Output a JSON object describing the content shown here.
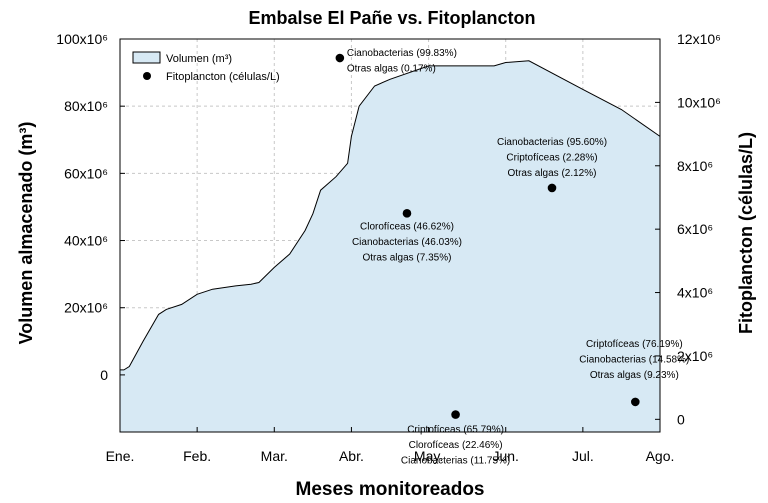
{
  "chart_data": {
    "type": "area",
    "title": "Embalse El Pañe vs. Fitoplancton",
    "xlabel": "Meses monitoreados",
    "ylabel_left": "Volumen almacenado (m³)",
    "ylabel_right": "Fitoplancton (células/L)",
    "months": [
      "Ene.",
      "Feb.",
      "Mar.",
      "Abr.",
      "May.",
      "Jun.",
      "Jul.",
      "Ago."
    ],
    "ylim_left": [
      -17,
      100
    ],
    "ylim_right": [
      -0.4,
      12
    ],
    "left_ticks": [
      {
        "v": 100,
        "label": "100x10⁶"
      },
      {
        "v": 80,
        "label": "80x10⁶"
      },
      {
        "v": 60,
        "label": "60x10⁶"
      },
      {
        "v": 40,
        "label": "40x10⁶"
      },
      {
        "v": 20,
        "label": "20x10⁶"
      },
      {
        "v": 0,
        "label": "0"
      }
    ],
    "right_ticks": [
      {
        "v": 12,
        "label": "12x10⁶"
      },
      {
        "v": 10,
        "label": "10x10⁶"
      },
      {
        "v": 8,
        "label": "8x10⁶"
      },
      {
        "v": 6,
        "label": "6x10⁶"
      },
      {
        "v": 4,
        "label": "4x10⁶"
      },
      {
        "v": 2,
        "label": "2x10⁶"
      },
      {
        "v": 0,
        "label": "0"
      }
    ],
    "grid": true,
    "legend_position": "top-left",
    "series": [
      {
        "name": "Volumen (m³)",
        "unit_scale": "x10⁶ m³",
        "x": [
          0,
          0.05,
          0.12,
          0.3,
          0.5,
          0.6,
          0.8,
          1.0,
          1.2,
          1.5,
          1.7,
          1.8,
          2.0,
          2.2,
          2.4,
          2.5,
          2.6,
          2.8,
          2.95,
          3.0,
          3.1,
          3.3,
          3.5,
          4.0,
          4.5,
          4.85,
          5.0,
          5.3,
          6.0,
          6.5,
          7.0
        ],
        "values": [
          1.5,
          1.5,
          2.5,
          10,
          18,
          19.5,
          21,
          24,
          25.5,
          26.5,
          27,
          27.5,
          32,
          36,
          43,
          48,
          55,
          59,
          63,
          71,
          80,
          86,
          88,
          92,
          92,
          92,
          93,
          93.5,
          85,
          79,
          71
        ]
      },
      {
        "name": "Fitoplancton (células/L)",
        "unit_scale": "x10⁶ células/L",
        "x": [
          2.85,
          3.72,
          4.35,
          5.6,
          6.68
        ],
        "values": [
          11.4,
          6.5,
          0.15,
          7.3,
          0.55
        ],
        "annotations": [
          [
            "Cianobacterias (99.83%)",
            "Otras algas (0.17%)"
          ],
          [
            "Clorofíceas (46.62%)",
            "Cianobacterias (46.03%)",
            "Otras algas (7.35%)"
          ],
          [
            "Criptofíceas (65.79%)",
            "Clorofíceas (22.46%)",
            "Cianobacterias (11.75%)"
          ],
          [
            "Cianobacterias (95.60%)",
            "Criptofíceas (2.28%)",
            "Otras algas (2.12%)"
          ],
          [
            "Criptofíceas (76.19%)",
            "Cianobacterias (14.58%)",
            "Otras algas (9.23%)"
          ]
        ]
      }
    ],
    "colors": {
      "area_fill": "#d7e9f4",
      "area_stroke": "#000000",
      "points": "#000000",
      "grid": "#c8c8c8"
    }
  }
}
